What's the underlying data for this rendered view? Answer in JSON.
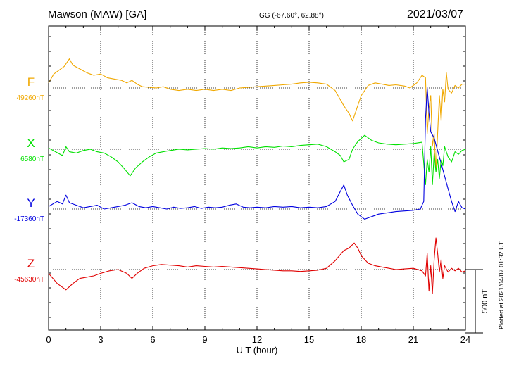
{
  "header": {
    "station": "Mawson (MAW)  [GA]",
    "coords": "GG (-67.60°,  62.88°)",
    "date": "2021/03/07"
  },
  "footer_note": "Plotted at 2021/04/07 01:32 UT",
  "chart_data": {
    "type": "line",
    "xlabel": "U T (hour)",
    "xlim": [
      0,
      24
    ],
    "xticks": [
      "0",
      "3",
      "6",
      "9",
      "12",
      "15",
      "18",
      "21",
      "24"
    ],
    "scale_bar_label": "500 nT",
    "scale_bar_nT": 500,
    "series": [
      {
        "name": "F",
        "baseline_label": "49260nT",
        "baseline": 49260,
        "color": "#f0a800",
        "points": [
          [
            0,
            49300
          ],
          [
            0.3,
            49370
          ],
          [
            0.6,
            49400
          ],
          [
            0.9,
            49430
          ],
          [
            1.2,
            49490
          ],
          [
            1.4,
            49440
          ],
          [
            1.8,
            49410
          ],
          [
            2.2,
            49380
          ],
          [
            2.6,
            49360
          ],
          [
            3.0,
            49370
          ],
          [
            3.4,
            49340
          ],
          [
            3.8,
            49330
          ],
          [
            4.2,
            49320
          ],
          [
            4.5,
            49300
          ],
          [
            4.8,
            49320
          ],
          [
            5.1,
            49290
          ],
          [
            5.4,
            49270
          ],
          [
            5.8,
            49265
          ],
          [
            6.2,
            49260
          ],
          [
            6.6,
            49270
          ],
          [
            7.0,
            49250
          ],
          [
            7.5,
            49240
          ],
          [
            8.0,
            49250
          ],
          [
            8.5,
            49240
          ],
          [
            9.0,
            49250
          ],
          [
            9.5,
            49240
          ],
          [
            10.0,
            49250
          ],
          [
            10.5,
            49240
          ],
          [
            11.0,
            49260
          ],
          [
            11.5,
            49265
          ],
          [
            12.0,
            49270
          ],
          [
            12.5,
            49275
          ],
          [
            13.0,
            49280
          ],
          [
            13.5,
            49285
          ],
          [
            14.0,
            49290
          ],
          [
            14.5,
            49300
          ],
          [
            15.0,
            49305
          ],
          [
            15.5,
            49300
          ],
          [
            16.0,
            49290
          ],
          [
            16.5,
            49240
          ],
          [
            17.0,
            49120
          ],
          [
            17.3,
            49060
          ],
          [
            17.5,
            49000
          ],
          [
            17.7,
            49080
          ],
          [
            18.0,
            49200
          ],
          [
            18.4,
            49280
          ],
          [
            18.8,
            49300
          ],
          [
            19.2,
            49290
          ],
          [
            19.6,
            49280
          ],
          [
            20.0,
            49285
          ],
          [
            20.5,
            49275
          ],
          [
            20.8,
            49260
          ],
          [
            21.2,
            49300
          ],
          [
            21.5,
            49360
          ],
          [
            21.7,
            49340
          ],
          [
            21.8,
            48900
          ],
          [
            21.9,
            49100
          ],
          [
            22.0,
            49200
          ],
          [
            22.1,
            48800
          ],
          [
            22.2,
            48900
          ],
          [
            22.3,
            48600
          ],
          [
            22.4,
            48900
          ],
          [
            22.5,
            49200
          ],
          [
            22.6,
            49000
          ],
          [
            22.7,
            49250
          ],
          [
            22.8,
            49150
          ],
          [
            22.9,
            49380
          ],
          [
            23.0,
            49250
          ],
          [
            23.2,
            49220
          ],
          [
            23.4,
            49280
          ],
          [
            23.6,
            49260
          ],
          [
            23.8,
            49290
          ],
          [
            24.0,
            49290
          ]
        ]
      },
      {
        "name": "X",
        "baseline_label": "6580nT",
        "baseline": 6580,
        "color": "#00e000",
        "points": [
          [
            0,
            6590
          ],
          [
            0.4,
            6560
          ],
          [
            0.8,
            6530
          ],
          [
            1.0,
            6600
          ],
          [
            1.2,
            6560
          ],
          [
            1.6,
            6550
          ],
          [
            2.0,
            6570
          ],
          [
            2.4,
            6580
          ],
          [
            2.8,
            6560
          ],
          [
            3.2,
            6550
          ],
          [
            3.6,
            6520
          ],
          [
            4.0,
            6480
          ],
          [
            4.4,
            6420
          ],
          [
            4.7,
            6370
          ],
          [
            5.0,
            6430
          ],
          [
            5.4,
            6480
          ],
          [
            5.8,
            6520
          ],
          [
            6.2,
            6550
          ],
          [
            6.6,
            6560
          ],
          [
            7.0,
            6570
          ],
          [
            7.5,
            6580
          ],
          [
            8.0,
            6575
          ],
          [
            8.5,
            6580
          ],
          [
            9.0,
            6585
          ],
          [
            9.5,
            6580
          ],
          [
            10.0,
            6590
          ],
          [
            10.5,
            6585
          ],
          [
            11.0,
            6590
          ],
          [
            11.5,
            6600
          ],
          [
            12.0,
            6590
          ],
          [
            12.5,
            6600
          ],
          [
            13.0,
            6595
          ],
          [
            13.5,
            6605
          ],
          [
            14.0,
            6600
          ],
          [
            14.5,
            6610
          ],
          [
            15.0,
            6615
          ],
          [
            15.5,
            6620
          ],
          [
            16.0,
            6600
          ],
          [
            16.5,
            6560
          ],
          [
            16.8,
            6530
          ],
          [
            17.0,
            6480
          ],
          [
            17.3,
            6500
          ],
          [
            17.5,
            6580
          ],
          [
            17.8,
            6640
          ],
          [
            18.2,
            6690
          ],
          [
            18.6,
            6650
          ],
          [
            19.0,
            6630
          ],
          [
            19.5,
            6620
          ],
          [
            20.0,
            6615
          ],
          [
            20.5,
            6620
          ],
          [
            21.0,
            6625
          ],
          [
            21.5,
            6635
          ],
          [
            21.7,
            6300
          ],
          [
            21.8,
            6500
          ],
          [
            21.9,
            6400
          ],
          [
            22.0,
            6600
          ],
          [
            22.1,
            6300
          ],
          [
            22.2,
            6550
          ],
          [
            22.3,
            6400
          ],
          [
            22.4,
            6500
          ],
          [
            22.5,
            6350
          ],
          [
            22.6,
            6500
          ],
          [
            22.7,
            6450
          ],
          [
            22.8,
            6600
          ],
          [
            23.0,
            6520
          ],
          [
            23.2,
            6480
          ],
          [
            23.4,
            6560
          ],
          [
            23.6,
            6540
          ],
          [
            23.8,
            6570
          ],
          [
            24.0,
            6580
          ]
        ]
      },
      {
        "name": "Y",
        "baseline_label": "-17360nT",
        "baseline": -17360,
        "color": "#0000e0",
        "points": [
          [
            0,
            -17340
          ],
          [
            0.5,
            -17300
          ],
          [
            0.8,
            -17320
          ],
          [
            1.0,
            -17250
          ],
          [
            1.2,
            -17310
          ],
          [
            1.6,
            -17330
          ],
          [
            2.0,
            -17350
          ],
          [
            2.4,
            -17340
          ],
          [
            2.8,
            -17330
          ],
          [
            3.2,
            -17360
          ],
          [
            3.6,
            -17350
          ],
          [
            4.0,
            -17340
          ],
          [
            4.4,
            -17330
          ],
          [
            4.8,
            -17310
          ],
          [
            5.2,
            -17340
          ],
          [
            5.6,
            -17350
          ],
          [
            6.0,
            -17340
          ],
          [
            6.4,
            -17350
          ],
          [
            6.8,
            -17360
          ],
          [
            7.2,
            -17345
          ],
          [
            7.6,
            -17355
          ],
          [
            8.0,
            -17350
          ],
          [
            8.4,
            -17340
          ],
          [
            8.8,
            -17355
          ],
          [
            9.2,
            -17345
          ],
          [
            9.6,
            -17350
          ],
          [
            10.0,
            -17345
          ],
          [
            10.4,
            -17330
          ],
          [
            10.8,
            -17320
          ],
          [
            11.2,
            -17345
          ],
          [
            11.6,
            -17350
          ],
          [
            12.0,
            -17345
          ],
          [
            12.5,
            -17350
          ],
          [
            13.0,
            -17340
          ],
          [
            13.5,
            -17345
          ],
          [
            14.0,
            -17340
          ],
          [
            14.5,
            -17350
          ],
          [
            15.0,
            -17345
          ],
          [
            15.5,
            -17350
          ],
          [
            16.0,
            -17340
          ],
          [
            16.5,
            -17300
          ],
          [
            16.8,
            -17220
          ],
          [
            17.0,
            -17170
          ],
          [
            17.2,
            -17250
          ],
          [
            17.5,
            -17330
          ],
          [
            17.8,
            -17400
          ],
          [
            18.2,
            -17440
          ],
          [
            18.6,
            -17420
          ],
          [
            19.0,
            -17400
          ],
          [
            19.5,
            -17390
          ],
          [
            20.0,
            -17380
          ],
          [
            20.5,
            -17375
          ],
          [
            21.0,
            -17370
          ],
          [
            21.4,
            -17360
          ],
          [
            21.6,
            -17300
          ],
          [
            21.7,
            -16650
          ],
          [
            21.8,
            -16400
          ],
          [
            21.9,
            -16600
          ],
          [
            22.0,
            -16750
          ],
          [
            22.2,
            -16800
          ],
          [
            22.4,
            -16900
          ],
          [
            22.6,
            -17000
          ],
          [
            22.8,
            -17100
          ],
          [
            23.0,
            -17200
          ],
          [
            23.2,
            -17300
          ],
          [
            23.4,
            -17380
          ],
          [
            23.6,
            -17300
          ],
          [
            23.8,
            -17350
          ],
          [
            24.0,
            -17360
          ]
        ]
      },
      {
        "name": "Z",
        "baseline_label": "-45630nT",
        "baseline": -45630,
        "color": "#e00000",
        "points": [
          [
            0,
            -45660
          ],
          [
            0.5,
            -45740
          ],
          [
            1.0,
            -45790
          ],
          [
            1.4,
            -45740
          ],
          [
            1.8,
            -45700
          ],
          [
            2.2,
            -45690
          ],
          [
            2.6,
            -45680
          ],
          [
            3.0,
            -45660
          ],
          [
            3.5,
            -45640
          ],
          [
            4.0,
            -45630
          ],
          [
            4.5,
            -45660
          ],
          [
            4.8,
            -45700
          ],
          [
            5.1,
            -45660
          ],
          [
            5.5,
            -45620
          ],
          [
            6.0,
            -45600
          ],
          [
            6.5,
            -45590
          ],
          [
            7.0,
            -45595
          ],
          [
            7.5,
            -45600
          ],
          [
            8.0,
            -45610
          ],
          [
            8.5,
            -45600
          ],
          [
            9.0,
            -45605
          ],
          [
            9.5,
            -45610
          ],
          [
            10.0,
            -45605
          ],
          [
            10.5,
            -45610
          ],
          [
            11.0,
            -45615
          ],
          [
            11.5,
            -45620
          ],
          [
            12.0,
            -45625
          ],
          [
            12.5,
            -45630
          ],
          [
            13.0,
            -45635
          ],
          [
            13.5,
            -45640
          ],
          [
            14.0,
            -45640
          ],
          [
            14.5,
            -45645
          ],
          [
            15.0,
            -45640
          ],
          [
            15.5,
            -45635
          ],
          [
            16.0,
            -45620
          ],
          [
            16.5,
            -45560
          ],
          [
            17.0,
            -45480
          ],
          [
            17.3,
            -45460
          ],
          [
            17.6,
            -45420
          ],
          [
            17.8,
            -45460
          ],
          [
            18.0,
            -45520
          ],
          [
            18.4,
            -45580
          ],
          [
            18.8,
            -45600
          ],
          [
            19.2,
            -45610
          ],
          [
            19.6,
            -45620
          ],
          [
            20.0,
            -45630
          ],
          [
            20.5,
            -45625
          ],
          [
            21.0,
            -45620
          ],
          [
            21.5,
            -45640
          ],
          [
            21.7,
            -45680
          ],
          [
            21.8,
            -45500
          ],
          [
            21.9,
            -45800
          ],
          [
            22.0,
            -45600
          ],
          [
            22.1,
            -45820
          ],
          [
            22.2,
            -45550
          ],
          [
            22.3,
            -45380
          ],
          [
            22.4,
            -45500
          ],
          [
            22.5,
            -45650
          ],
          [
            22.6,
            -45550
          ],
          [
            22.7,
            -45700
          ],
          [
            22.8,
            -45600
          ],
          [
            23.0,
            -45650
          ],
          [
            23.2,
            -45620
          ],
          [
            23.4,
            -45640
          ],
          [
            23.6,
            -45620
          ],
          [
            23.8,
            -45650
          ],
          [
            24.0,
            -45640
          ]
        ]
      }
    ]
  }
}
